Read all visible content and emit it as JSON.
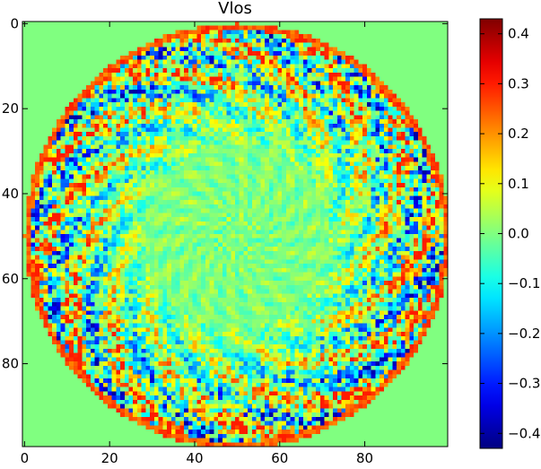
{
  "chart_data": {
    "type": "heatmap",
    "title": "Vlos",
    "xlabel": "",
    "ylabel": "",
    "image_size": [
      100,
      100
    ],
    "x_range": [
      -0.5,
      99.5
    ],
    "y_range": [
      -0.5,
      99.5
    ],
    "y_inverted": true,
    "x_ticks": [
      0,
      20,
      40,
      60,
      80
    ],
    "y_ticks": [
      0,
      20,
      40,
      60,
      80
    ],
    "colormap": "jet",
    "colorbar": {
      "vmin": -0.43,
      "vmax": 0.43,
      "ticks": [
        -0.4,
        -0.3,
        -0.2,
        -0.1,
        0.0,
        0.1,
        0.2,
        0.3,
        0.4
      ],
      "tick_labels": [
        "−0.4",
        "−0.3",
        "−0.2",
        "−0.1",
        "0.0",
        "0.1",
        "0.2",
        "0.3",
        "0.4"
      ]
    },
    "background_value": 0.0,
    "disk": {
      "center": [
        50,
        50
      ],
      "radius": 50,
      "inner_calm_radius": 22,
      "outer_ring_value": 0.25,
      "description_values": {
        "inner_region_range": [
          -0.08,
          0.08
        ],
        "outer_region_range": [
          -0.4,
          0.3
        ]
      }
    }
  }
}
